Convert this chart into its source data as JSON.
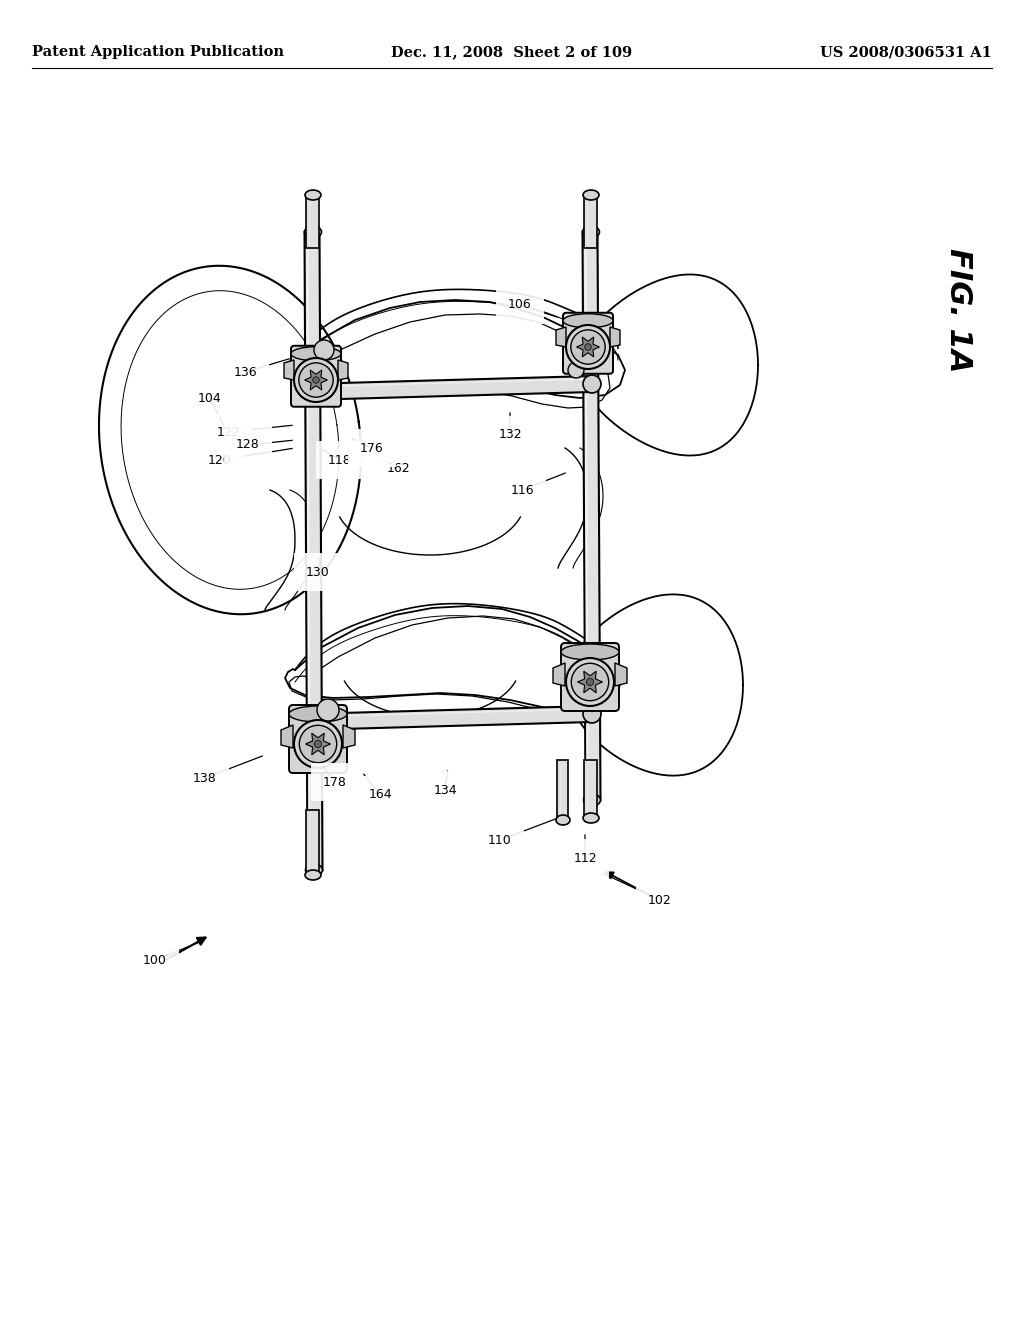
{
  "background_color": "#ffffff",
  "page_width": 10.24,
  "page_height": 13.2,
  "header_left": "Patent Application Publication",
  "header_center": "Dec. 11, 2008  Sheet 2 of 109",
  "header_right": "US 2008/0306531 A1",
  "fig_label": "FIG. 1A",
  "header_fontsize": 10.5,
  "fig_label_fontsize": 22,
  "ref_fontsize": 9
}
